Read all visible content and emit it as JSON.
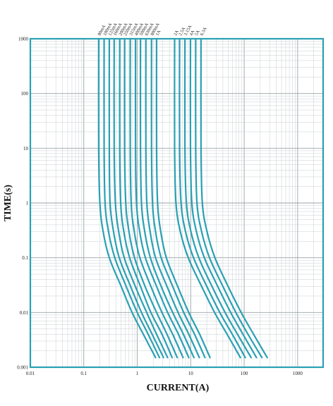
{
  "chart_data": {
    "type": "line",
    "title": "",
    "xlabel": "CURRENT(A)",
    "ylabel": "TIME(s)",
    "x_scale": "log",
    "y_scale": "log",
    "xlim": [
      0.01,
      3000
    ],
    "ylim": [
      0.001,
      1000
    ],
    "grid": true,
    "x_ticks": [
      "0.01",
      "0.1",
      "1",
      "10",
      "100",
      "1000"
    ],
    "y_ticks": [
      "0.001",
      "0.01",
      "0.1",
      "1",
      "10",
      "100",
      "1000"
    ],
    "line_color": "#2aa0b3",
    "frame_color": "#2aa0b3",
    "series": [
      {
        "name": "80mA",
        "x": [
          0.19,
          0.19,
          0.2,
          0.23,
          0.3,
          0.5,
          0.8,
          1.3,
          2.2
        ],
        "y": [
          1000,
          10,
          1,
          0.3,
          0.1,
          0.03,
          0.01,
          0.004,
          0.0015
        ]
      },
      {
        "name": "100mA",
        "x": [
          0.24,
          0.24,
          0.25,
          0.29,
          0.38,
          0.62,
          1.0,
          1.6,
          2.6
        ],
        "y": [
          1000,
          10,
          1,
          0.3,
          0.1,
          0.03,
          0.01,
          0.004,
          0.0015
        ]
      },
      {
        "name": "125mA",
        "x": [
          0.3,
          0.3,
          0.31,
          0.36,
          0.46,
          0.75,
          1.2,
          1.9,
          3.1
        ],
        "y": [
          1000,
          10,
          1,
          0.3,
          0.1,
          0.03,
          0.01,
          0.004,
          0.0015
        ]
      },
      {
        "name": "160mA",
        "x": [
          0.37,
          0.37,
          0.39,
          0.45,
          0.57,
          0.92,
          1.5,
          2.3,
          3.7
        ],
        "y": [
          1000,
          10,
          1,
          0.3,
          0.1,
          0.03,
          0.01,
          0.004,
          0.0015
        ]
      },
      {
        "name": "200mA",
        "x": [
          0.47,
          0.47,
          0.49,
          0.56,
          0.72,
          1.15,
          1.8,
          2.9,
          4.5
        ],
        "y": [
          1000,
          10,
          1,
          0.3,
          0.1,
          0.03,
          0.01,
          0.004,
          0.0015
        ]
      },
      {
        "name": "250mA",
        "x": [
          0.58,
          0.58,
          0.61,
          0.7,
          0.89,
          1.4,
          2.3,
          3.6,
          5.6
        ],
        "y": [
          1000,
          10,
          1,
          0.3,
          0.1,
          0.03,
          0.01,
          0.004,
          0.0015
        ]
      },
      {
        "name": "315mA",
        "x": [
          0.74,
          0.74,
          0.77,
          0.88,
          1.12,
          1.8,
          2.9,
          4.6,
          7.2
        ],
        "y": [
          1000,
          10,
          1,
          0.3,
          0.1,
          0.03,
          0.01,
          0.004,
          0.0015
        ]
      },
      {
        "name": "400mA",
        "x": [
          0.93,
          0.93,
          0.97,
          1.11,
          1.42,
          2.3,
          3.7,
          5.9,
          9.2
        ],
        "y": [
          1000,
          10,
          1,
          0.3,
          0.1,
          0.03,
          0.01,
          0.004,
          0.0015
        ]
      },
      {
        "name": "500mA",
        "x": [
          1.15,
          1.15,
          1.2,
          1.38,
          1.76,
          2.8,
          4.6,
          7.3,
          11.5
        ],
        "y": [
          1000,
          10,
          1,
          0.3,
          0.1,
          0.03,
          0.01,
          0.004,
          0.0015
        ]
      },
      {
        "name": "630mA",
        "x": [
          1.45,
          1.45,
          1.51,
          1.74,
          2.2,
          3.6,
          5.8,
          9.2,
          14.5
        ],
        "y": [
          1000,
          10,
          1,
          0.3,
          0.1,
          0.03,
          0.01,
          0.004,
          0.0015
        ]
      },
      {
        "name": "800mA",
        "x": [
          1.85,
          1.85,
          1.93,
          2.2,
          2.8,
          4.6,
          7.4,
          11.8,
          18.5
        ],
        "y": [
          1000,
          10,
          1,
          0.3,
          0.1,
          0.03,
          0.01,
          0.004,
          0.0015
        ]
      },
      {
        "name": "1A",
        "x": [
          2.3,
          2.3,
          2.4,
          2.75,
          3.5,
          5.7,
          9.2,
          14.7,
          23
        ],
        "y": [
          1000,
          10,
          1,
          0.3,
          0.1,
          0.03,
          0.01,
          0.004,
          0.0015
        ]
      },
      {
        "name": "2A",
        "x": [
          5.0,
          5.0,
          5.3,
          6.4,
          9.0,
          16,
          28,
          48,
          85
        ],
        "y": [
          1000,
          10,
          1,
          0.3,
          0.1,
          0.03,
          0.01,
          0.004,
          0.0015
        ]
      },
      {
        "name": "2.5A",
        "x": [
          6.2,
          6.2,
          6.6,
          8.0,
          11.3,
          20,
          35,
          60,
          105
        ],
        "y": [
          1000,
          10,
          1,
          0.3,
          0.1,
          0.03,
          0.01,
          0.004,
          0.0015
        ]
      },
      {
        "name": "3.15A",
        "x": [
          7.8,
          7.8,
          8.3,
          10.1,
          14.2,
          25,
          44,
          75,
          135
        ],
        "y": [
          1000,
          10,
          1,
          0.3,
          0.1,
          0.03,
          0.01,
          0.004,
          0.0015
        ]
      },
      {
        "name": "4A",
        "x": [
          9.9,
          9.9,
          10.5,
          12.8,
          18,
          32,
          56,
          95,
          170
        ],
        "y": [
          1000,
          10,
          1,
          0.3,
          0.1,
          0.03,
          0.01,
          0.004,
          0.0015
        ]
      },
      {
        "name": "5A",
        "x": [
          12.4,
          12.4,
          13.1,
          16,
          22.5,
          40,
          70,
          118,
          215
        ],
        "y": [
          1000,
          10,
          1,
          0.3,
          0.1,
          0.03,
          0.01,
          0.004,
          0.0015
        ]
      },
      {
        "name": "6.3A",
        "x": [
          15.6,
          15.6,
          16.5,
          20.2,
          28.4,
          50,
          88,
          150,
          270
        ],
        "y": [
          1000,
          10,
          1,
          0.3,
          0.1,
          0.03,
          0.01,
          0.004,
          0.0015
        ]
      }
    ]
  }
}
